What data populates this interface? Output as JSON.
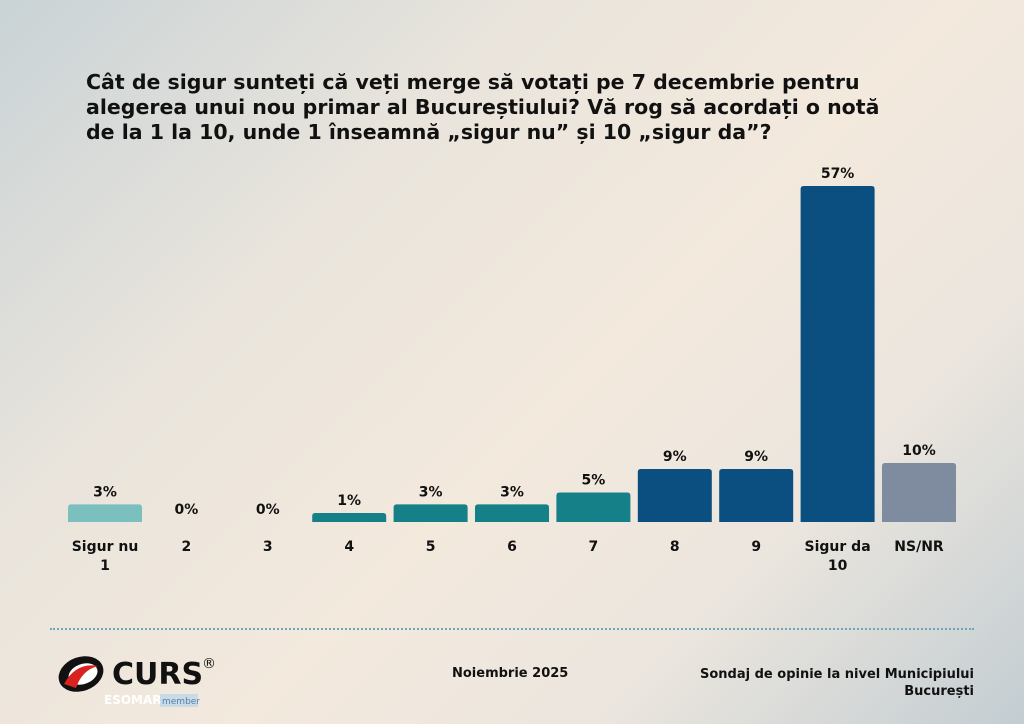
{
  "title_lines": [
    "Cât de sigur sunteți că veți merge să votați pe 7 decembrie pentru",
    "alegerea unui nou primar al Bucureștiului? Vă rog să acordați o notă",
    "de la 1 la 10, unde 1 înseamnă „sigur nu” și 10 „sigur da”?"
  ],
  "chart_data": {
    "type": "bar",
    "title": "Cât de sigur sunteți că veți merge să votați pe 7 decembrie pentru alegerea unui nou primar al Bucureștiului? Vă rog să acordați o notă de la 1 la 10, unde 1 înseamnă „sigur nu” și 10 „sigur da”?",
    "categories": [
      [
        "Sigur nu",
        "1"
      ],
      [
        "2"
      ],
      [
        "3"
      ],
      [
        "4"
      ],
      [
        "5"
      ],
      [
        "6"
      ],
      [
        "7"
      ],
      [
        "8"
      ],
      [
        "9"
      ],
      [
        "Sigur da",
        "10"
      ],
      [
        "NS/NR"
      ]
    ],
    "values": [
      3,
      0,
      0,
      1,
      3,
      3,
      5,
      9,
      9,
      57,
      10
    ],
    "value_labels": [
      "3%",
      "0%",
      "0%",
      "1%",
      "3%",
      "3%",
      "5%",
      "9%",
      "9%",
      "57%",
      "10%"
    ],
    "colors": [
      "#7bbfbf",
      "#168089",
      "#168089",
      "#168089",
      "#168089",
      "#168089",
      "#168089",
      "#0b4f80",
      "#0b4f80",
      "#0b4f80",
      "#7f8ca0"
    ],
    "ylim": [
      0,
      57
    ],
    "grid": false,
    "legend": "none"
  },
  "footer": {
    "date": "Noiembrie 2025",
    "source_line1": "Sondaj de opinie la nivel Municipiului",
    "source_line2": "București"
  },
  "logo": {
    "brand": "CURS",
    "reg": "®",
    "sub": "ESOMAR",
    "sub2": "member"
  }
}
